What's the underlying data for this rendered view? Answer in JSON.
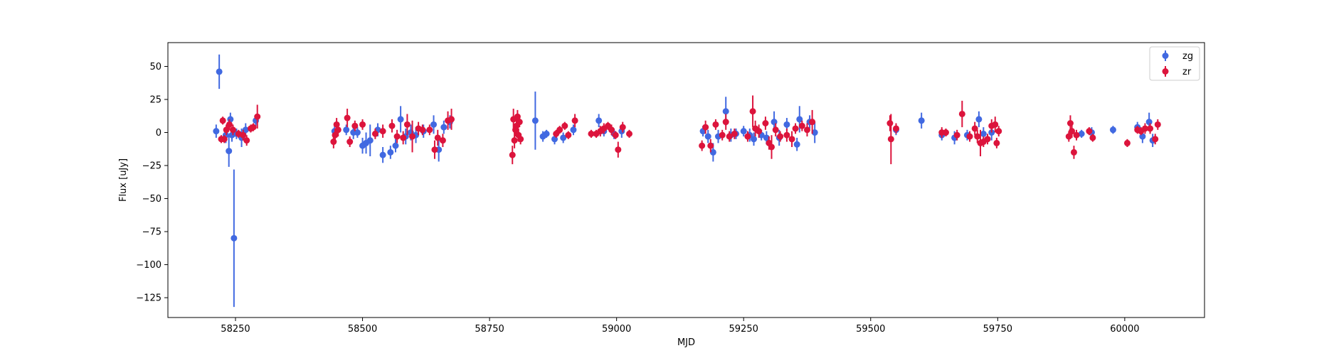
{
  "chart_data": {
    "type": "scatter",
    "title": "",
    "xlabel": "MJD",
    "ylabel": "Flux [uJy]",
    "xlim": [
      58117,
      60157
    ],
    "ylim": [
      -140,
      68
    ],
    "xticks": [
      58250,
      58500,
      58750,
      59000,
      59250,
      59500,
      59750,
      60000
    ],
    "yticks": [
      -125,
      -100,
      -75,
      -50,
      -25,
      0,
      25,
      50
    ],
    "xtick_labels": [
      "58250",
      "58500",
      "58750",
      "59000",
      "59250",
      "59500",
      "59750",
      "60000"
    ],
    "ytick_labels": [
      "−125",
      "−100",
      "−75",
      "−50",
      "−25",
      "0",
      "25",
      "50"
    ],
    "grid": false,
    "legend_position": "top-right",
    "series": [
      {
        "name": "zg",
        "color": "#4169e1",
        "marker": "circle",
        "points": [
          [
            58212,
            1,
            5
          ],
          [
            58218,
            46,
            13
          ],
          [
            58231,
            -2,
            6
          ],
          [
            58237,
            -14,
            12
          ],
          [
            58240,
            10,
            5
          ],
          [
            58243,
            -2,
            5
          ],
          [
            58247,
            -80,
            52
          ],
          [
            58252,
            -1,
            4
          ],
          [
            58262,
            -4,
            7
          ],
          [
            58270,
            2,
            5
          ],
          [
            58290,
            9,
            4
          ],
          [
            58445,
            1,
            4
          ],
          [
            58468,
            2,
            4
          ],
          [
            58482,
            0,
            5
          ],
          [
            58490,
            0,
            4
          ],
          [
            58500,
            -10,
            6
          ],
          [
            58507,
            -8,
            8
          ],
          [
            58515,
            -6,
            12
          ],
          [
            58530,
            2,
            5
          ],
          [
            58540,
            -17,
            6
          ],
          [
            58555,
            -15,
            5
          ],
          [
            58565,
            -10,
            5
          ],
          [
            58575,
            10,
            10
          ],
          [
            58585,
            -3,
            6
          ],
          [
            58595,
            0,
            6
          ],
          [
            58605,
            -2,
            6
          ],
          [
            58620,
            1,
            5
          ],
          [
            58640,
            6,
            7
          ],
          [
            58650,
            -13,
            9
          ],
          [
            58660,
            4,
            5
          ],
          [
            58672,
            8,
            5
          ],
          [
            58840,
            9,
            22
          ],
          [
            58855,
            -3,
            4
          ],
          [
            58862,
            -1,
            3
          ],
          [
            58878,
            -5,
            4
          ],
          [
            58895,
            -4,
            4
          ],
          [
            58915,
            2,
            4
          ],
          [
            58965,
            9,
            5
          ],
          [
            58975,
            1,
            4
          ],
          [
            58995,
            -1,
            4
          ],
          [
            59010,
            1,
            5
          ],
          [
            59170,
            1,
            4
          ],
          [
            59180,
            -3,
            5
          ],
          [
            59190,
            -15,
            7
          ],
          [
            59200,
            -3,
            5
          ],
          [
            59215,
            16,
            11
          ],
          [
            59225,
            -2,
            5
          ],
          [
            59235,
            -1,
            4
          ],
          [
            59250,
            1,
            4
          ],
          [
            59262,
            -2,
            5
          ],
          [
            59270,
            -5,
            5
          ],
          [
            59285,
            -2,
            4
          ],
          [
            59295,
            -4,
            5
          ],
          [
            59310,
            8,
            8
          ],
          [
            59320,
            -4,
            6
          ],
          [
            59335,
            6,
            5
          ],
          [
            59355,
            -9,
            5
          ],
          [
            59360,
            10,
            10
          ],
          [
            59380,
            8,
            5
          ],
          [
            59390,
            0,
            8
          ],
          [
            59550,
            2,
            4
          ],
          [
            59600,
            9,
            6
          ],
          [
            59640,
            -2,
            4
          ],
          [
            59665,
            -4,
            5
          ],
          [
            59690,
            -2,
            4
          ],
          [
            59713,
            10,
            6
          ],
          [
            59722,
            -1,
            5
          ],
          [
            59738,
            0,
            6
          ],
          [
            59915,
            -1,
            3
          ],
          [
            59935,
            0,
            4
          ],
          [
            59977,
            2,
            3
          ],
          [
            60025,
            4,
            4
          ],
          [
            60035,
            -3,
            5
          ],
          [
            60048,
            8,
            7
          ],
          [
            60055,
            -6,
            5
          ]
        ]
      },
      {
        "name": "zr",
        "color": "#dc143c",
        "marker": "circle",
        "points": [
          [
            58222,
            -5,
            3
          ],
          [
            58225,
            9,
            3
          ],
          [
            58228,
            -5,
            3
          ],
          [
            58232,
            2,
            4
          ],
          [
            58238,
            6,
            4
          ],
          [
            58245,
            2,
            4
          ],
          [
            58256,
            -1,
            3
          ],
          [
            58265,
            -2,
            4
          ],
          [
            58272,
            -6,
            4
          ],
          [
            58280,
            3,
            3
          ],
          [
            58285,
            4,
            3
          ],
          [
            58293,
            12,
            9
          ],
          [
            58443,
            -7,
            5
          ],
          [
            58446,
            -2,
            5
          ],
          [
            58449,
            6,
            5
          ],
          [
            58452,
            2,
            5
          ],
          [
            58470,
            11,
            7
          ],
          [
            58475,
            -7,
            4
          ],
          [
            58485,
            5,
            4
          ],
          [
            58500,
            6,
            4
          ],
          [
            58525,
            -1,
            4
          ],
          [
            58540,
            1,
            5
          ],
          [
            58558,
            5,
            5
          ],
          [
            58568,
            -3,
            5
          ],
          [
            58580,
            -4,
            5
          ],
          [
            58588,
            6,
            8
          ],
          [
            58598,
            -3,
            12
          ],
          [
            58610,
            3,
            5
          ],
          [
            58618,
            2,
            4
          ],
          [
            58632,
            2,
            4
          ],
          [
            58642,
            -13,
            7
          ],
          [
            58648,
            -4,
            6
          ],
          [
            58658,
            -6,
            5
          ],
          [
            58668,
            9,
            7
          ],
          [
            58675,
            10,
            8
          ],
          [
            58795,
            -17,
            7
          ],
          [
            58797,
            10,
            8
          ],
          [
            58799,
            -6,
            6
          ],
          [
            58801,
            2,
            5
          ],
          [
            58803,
            5,
            6
          ],
          [
            58805,
            12,
            5
          ],
          [
            58807,
            -2,
            5
          ],
          [
            58809,
            8,
            4
          ],
          [
            58811,
            -5,
            4
          ],
          [
            58881,
            -1,
            3
          ],
          [
            58888,
            2,
            3
          ],
          [
            58898,
            5,
            3
          ],
          [
            58905,
            -2,
            3
          ],
          [
            58918,
            9,
            5
          ],
          [
            58950,
            -1,
            3
          ],
          [
            58960,
            -1,
            3
          ],
          [
            58968,
            1,
            4
          ],
          [
            58975,
            3,
            4
          ],
          [
            58983,
            5,
            3
          ],
          [
            58990,
            2,
            4
          ],
          [
            58998,
            -2,
            3
          ],
          [
            59003,
            -13,
            6
          ],
          [
            59012,
            4,
            4
          ],
          [
            59025,
            -1,
            3
          ],
          [
            59168,
            -10,
            4
          ],
          [
            59175,
            4,
            5
          ],
          [
            59185,
            -10,
            5
          ],
          [
            59195,
            6,
            4
          ],
          [
            59208,
            -2,
            4
          ],
          [
            59215,
            8,
            6
          ],
          [
            59222,
            -3,
            4
          ],
          [
            59232,
            -1,
            4
          ],
          [
            59258,
            -3,
            4
          ],
          [
            59268,
            16,
            12
          ],
          [
            59273,
            3,
            6
          ],
          [
            59280,
            1,
            5
          ],
          [
            59293,
            7,
            5
          ],
          [
            59300,
            -8,
            5
          ],
          [
            59305,
            -11,
            9
          ],
          [
            59313,
            2,
            5
          ],
          [
            59322,
            -3,
            4
          ],
          [
            59335,
            -2,
            5
          ],
          [
            59345,
            -5,
            6
          ],
          [
            59352,
            3,
            4
          ],
          [
            59365,
            5,
            4
          ],
          [
            59375,
            2,
            5
          ],
          [
            59385,
            8,
            9
          ],
          [
            59540,
            -5,
            19
          ],
          [
            59538,
            7,
            6
          ],
          [
            59550,
            3,
            4
          ],
          [
            59640,
            0,
            4
          ],
          [
            59648,
            0,
            3
          ],
          [
            59670,
            -2,
            4
          ],
          [
            59680,
            14,
            10
          ],
          [
            59695,
            -3,
            4
          ],
          [
            59705,
            3,
            5
          ],
          [
            59710,
            -3,
            5
          ],
          [
            59716,
            -8,
            10
          ],
          [
            59722,
            -7,
            4
          ],
          [
            59730,
            -5,
            4
          ],
          [
            59738,
            5,
            5
          ],
          [
            59745,
            6,
            6
          ],
          [
            59748,
            -8,
            4
          ],
          [
            59752,
            1,
            4
          ],
          [
            59890,
            -3,
            4
          ],
          [
            59893,
            7,
            6
          ],
          [
            59896,
            1,
            5
          ],
          [
            59900,
            -15,
            5
          ],
          [
            59905,
            -2,
            4
          ],
          [
            59930,
            1,
            3
          ],
          [
            59937,
            -4,
            3
          ],
          [
            60005,
            -8,
            3
          ],
          [
            60025,
            2,
            3
          ],
          [
            60032,
            1,
            3
          ],
          [
            60040,
            3,
            4
          ],
          [
            60050,
            3,
            4
          ],
          [
            60060,
            -5,
            4
          ],
          [
            60065,
            6,
            4
          ]
        ]
      }
    ]
  }
}
